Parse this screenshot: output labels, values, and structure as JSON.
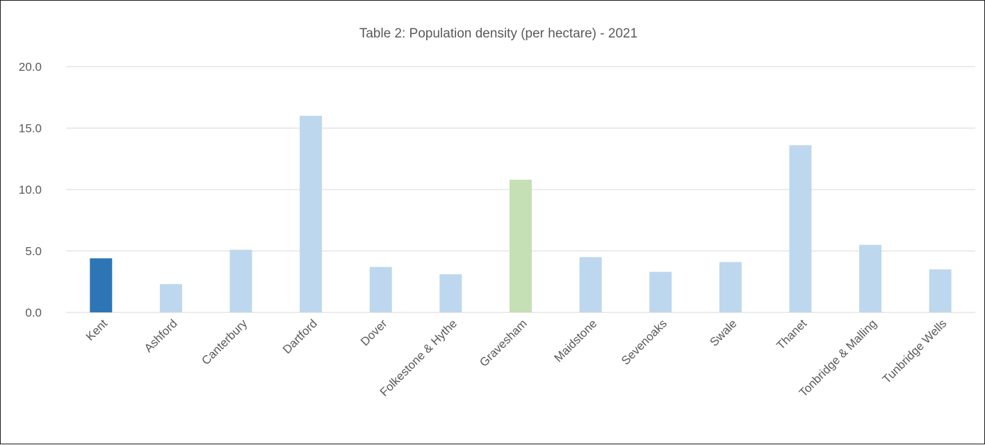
{
  "chart_data": {
    "type": "bar",
    "title": "Table 2: Population density (per hectare) - 2021",
    "xlabel": "",
    "ylabel": "",
    "ylim": [
      0,
      20
    ],
    "yticks": [
      "0.0",
      "5.0",
      "10.0",
      "15.0",
      "20.0"
    ],
    "ytick_values": [
      0,
      5,
      10,
      15,
      20
    ],
    "grid": true,
    "legend": "none",
    "categories": [
      "Kent",
      "Ashford",
      "Canterbury",
      "Dartford",
      "Dover",
      "Folkestone & Hythe",
      "Gravesham",
      "Maidstone",
      "Sevenoaks",
      "Swale",
      "Thanet",
      "Tonbridge & Malling",
      "Tunbridge Wells"
    ],
    "values": [
      4.4,
      2.3,
      5.1,
      16.0,
      3.7,
      3.1,
      10.8,
      4.5,
      3.3,
      4.1,
      13.6,
      5.5,
      3.5
    ],
    "colors": {
      "default": "#bdd7ee",
      "highlight_kent": "#2e75b6",
      "highlight_gravesham": "#c5e0b4",
      "gridline": "#d9d9d9",
      "text": "#595959"
    },
    "bar_colors": [
      "#2e75b6",
      "#bdd7ee",
      "#bdd7ee",
      "#bdd7ee",
      "#bdd7ee",
      "#bdd7ee",
      "#c5e0b4",
      "#bdd7ee",
      "#bdd7ee",
      "#bdd7ee",
      "#bdd7ee",
      "#bdd7ee",
      "#bdd7ee"
    ]
  }
}
